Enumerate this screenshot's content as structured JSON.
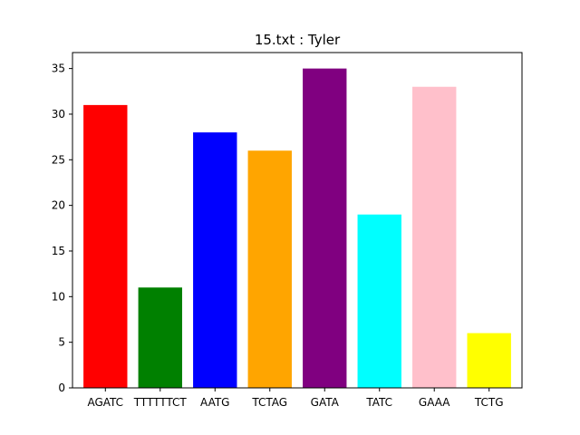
{
  "chart_data": {
    "type": "bar",
    "title": "15.txt : Tyler",
    "xlabel": "",
    "ylabel": "",
    "categories": [
      "AGATC",
      "TTTTTTCT",
      "AATG",
      "TCTAG",
      "GATA",
      "TATC",
      "GAAA",
      "TCTG"
    ],
    "values": [
      31,
      11,
      28,
      26,
      35,
      19,
      33,
      6
    ],
    "colors": [
      "#ff0000",
      "#008000",
      "#0000ff",
      "#ffa500",
      "#800080",
      "#00ffff",
      "#ffc0cb",
      "#ffff00"
    ],
    "ylim": [
      0,
      36.75
    ],
    "yticks": [
      0,
      5,
      10,
      15,
      20,
      25,
      30,
      35
    ],
    "grid": false,
    "legend": "none"
  }
}
